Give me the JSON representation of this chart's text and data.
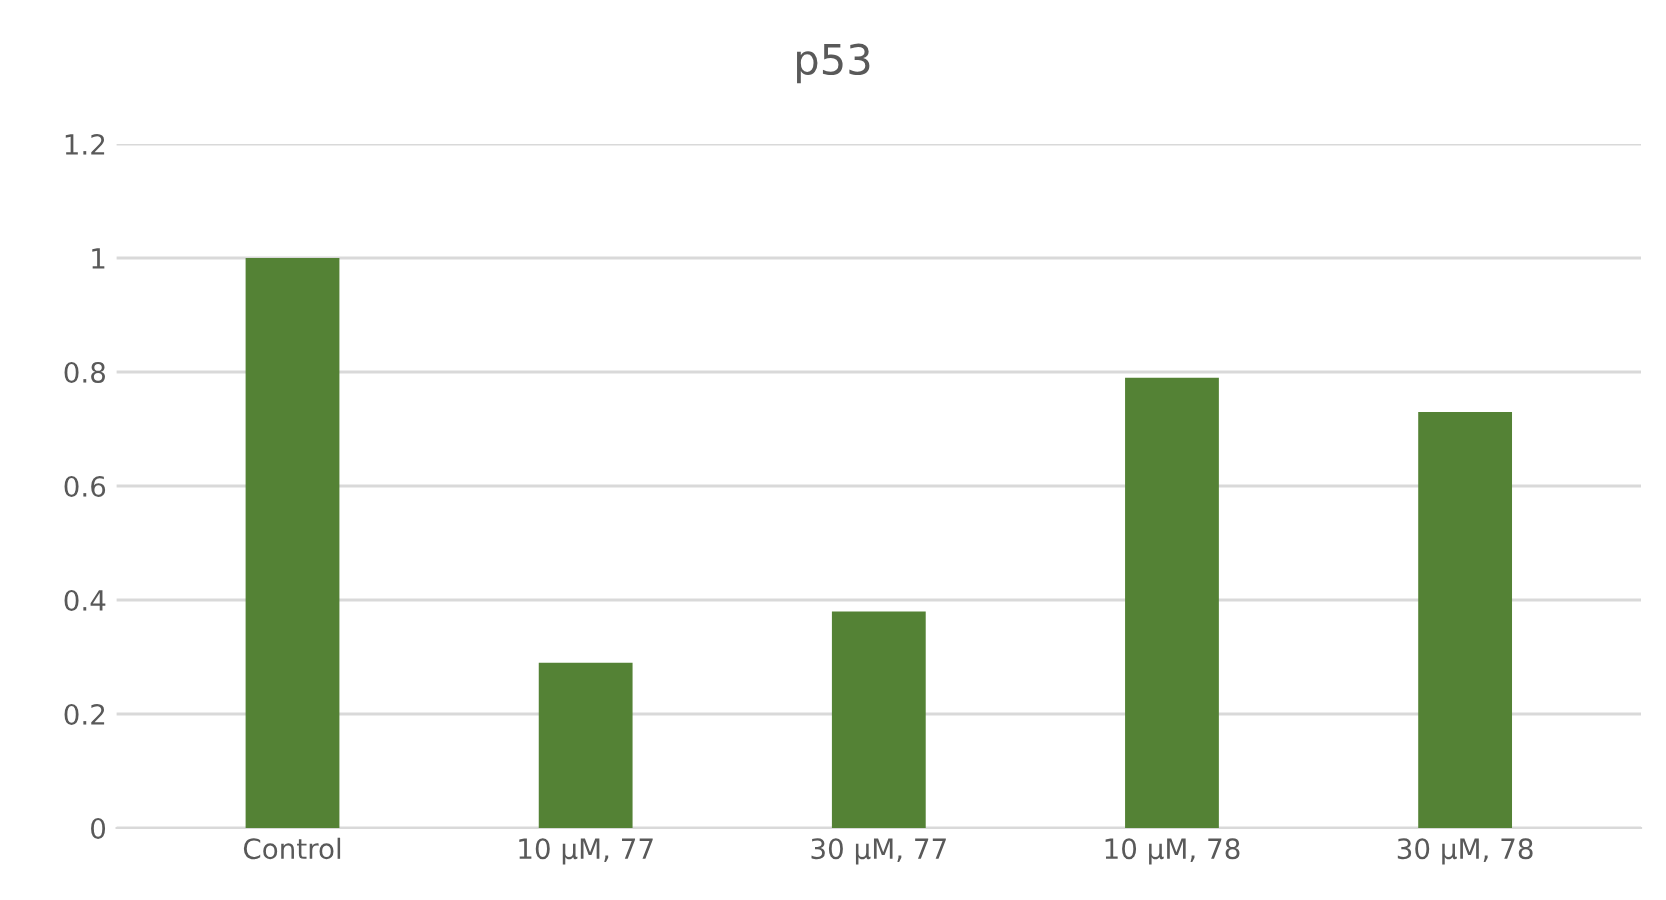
{
  "chart_data": {
    "type": "bar",
    "title": "p53",
    "categories": [
      "Control",
      "10 µM, 77",
      "30 µM, 77",
      "10 µM, 78",
      "30 µM, 78"
    ],
    "values": [
      1.0,
      0.29,
      0.38,
      0.79,
      0.73
    ],
    "color": "#548235",
    "ylim": [
      0,
      1.2
    ],
    "yticks": [
      {
        "value": 0,
        "label": "0"
      },
      0.2,
      0.4,
      0.6,
      0.8,
      {
        "value": 1,
        "label": "1"
      },
      1.2
    ],
    "grid": "y"
  }
}
